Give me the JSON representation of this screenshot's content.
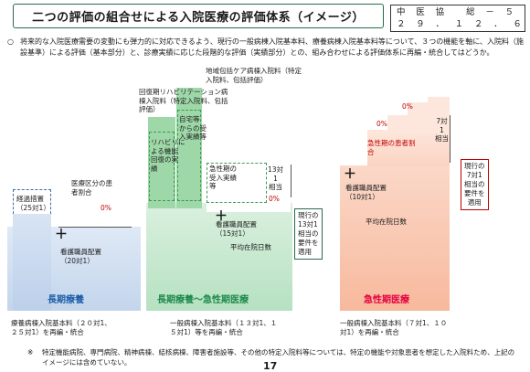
{
  "title": "二つの評価の組合せによる入院医療の評価体系（イメージ）",
  "doc_id": {
    "line1": "中 医 協　 総 － ５",
    "line2": "２ ９ ． １ ２ ． ６"
  },
  "intro": {
    "mark": "○",
    "text": "将来的な入院医療需要の変動にも弾力的に対応できるよう、現行の一般病棟入院基本料、療養病棟入院基本料等について、３つの機能を軸に、入院料（施設基準）による評価（基本部分）と、診療実績に応じた段階的な評価（実績部分）との、組み合わせによる評価体系に再編・統合してはどうか。"
  },
  "left": {
    "transition": "経過措置\n（25対1）",
    "medical_ratio": "医療区分の患\n者割合",
    "zero_pct": "0%",
    "nurse": "看護職員配置\n（20対1）",
    "plus": "＋",
    "label": "長期療養"
  },
  "center": {
    "rehab_ward": "回復期リハビリテーション病\n棟入院料（特定入院料、包括\n評価）",
    "rehab_function": "リハビリに\nよる機能\n回復の実\n績",
    "home_acceptance": "自宅等\nからの受\n入実績等",
    "community_care": "地域包括ケア病棟入院料（特定\n入院料、包括評価）",
    "acute_acceptance": "急性期の\n受入実績\n等",
    "ratio_13": "13対\n1\n相当",
    "zero_pct": "0%",
    "nurse": "看護職員配置\n（15対1）",
    "plus": "＋",
    "avg_days": "平均在院日数",
    "current_13": "現行の\n13対1\n相当の\n要件を\n適用",
    "label": "長期療養～急性期医療"
  },
  "right": {
    "acute_ratio": "急性期の患者割\n合",
    "ratio_7": "7対\n1\n相当",
    "zero_pct_1": "0%",
    "zero_pct_2": "0%",
    "nurse": "看護職員配置\n（10対1）",
    "plus": "＋",
    "avg_days": "平均在院日数",
    "current_7": "現行の\n7対1\n相当の\n要件を\n適用",
    "label": "急性期医療"
  },
  "bottom": {
    "left": "療養病棟入院基本料（２０対1、\n２５対1）を再編・統合",
    "center": "一般病棟入院基本料（１３対1、１\n５対1）等を再編・統合",
    "right": "一般病棟入院基本料（７対1、１０\n対1）を再編・統合"
  },
  "footnote": {
    "mark": "※",
    "text": "特定機能病院、専門病院、精神病棟、結核病棟、障害者施設等、その他の特定入院料等については、特定の機能や対象患者を想定した入院料ため、上記のイメージには含めていない。"
  },
  "page_number": "17",
  "colors": {
    "title_border": "#2b6a4a",
    "left_label": "#1f5fa8",
    "center_label": "#1e8a4c",
    "right_label": "#e5003f",
    "accent_red": "#c00000"
  }
}
